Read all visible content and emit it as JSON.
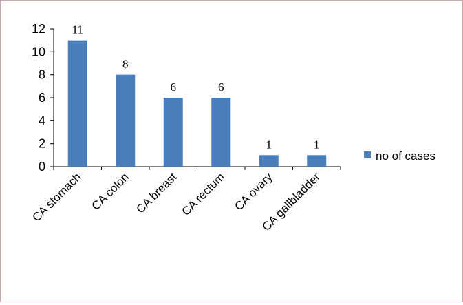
{
  "chart_data": {
    "type": "bar",
    "categories": [
      "CA stomach",
      "CA colon",
      "CA breast",
      "CA rectum",
      "CA ovary",
      "CA gallbladder"
    ],
    "series": [
      {
        "name": "no of cases",
        "values": [
          11,
          8,
          6,
          6,
          1,
          1
        ]
      }
    ],
    "data_labels": [
      "11",
      "8",
      "6",
      "6",
      "1",
      "1"
    ],
    "ylim": [
      0,
      12
    ],
    "yticks": [
      0,
      2,
      4,
      6,
      8,
      10,
      12
    ],
    "grid": false,
    "legend_position": "right",
    "bar_color": "#4a7ebb"
  }
}
